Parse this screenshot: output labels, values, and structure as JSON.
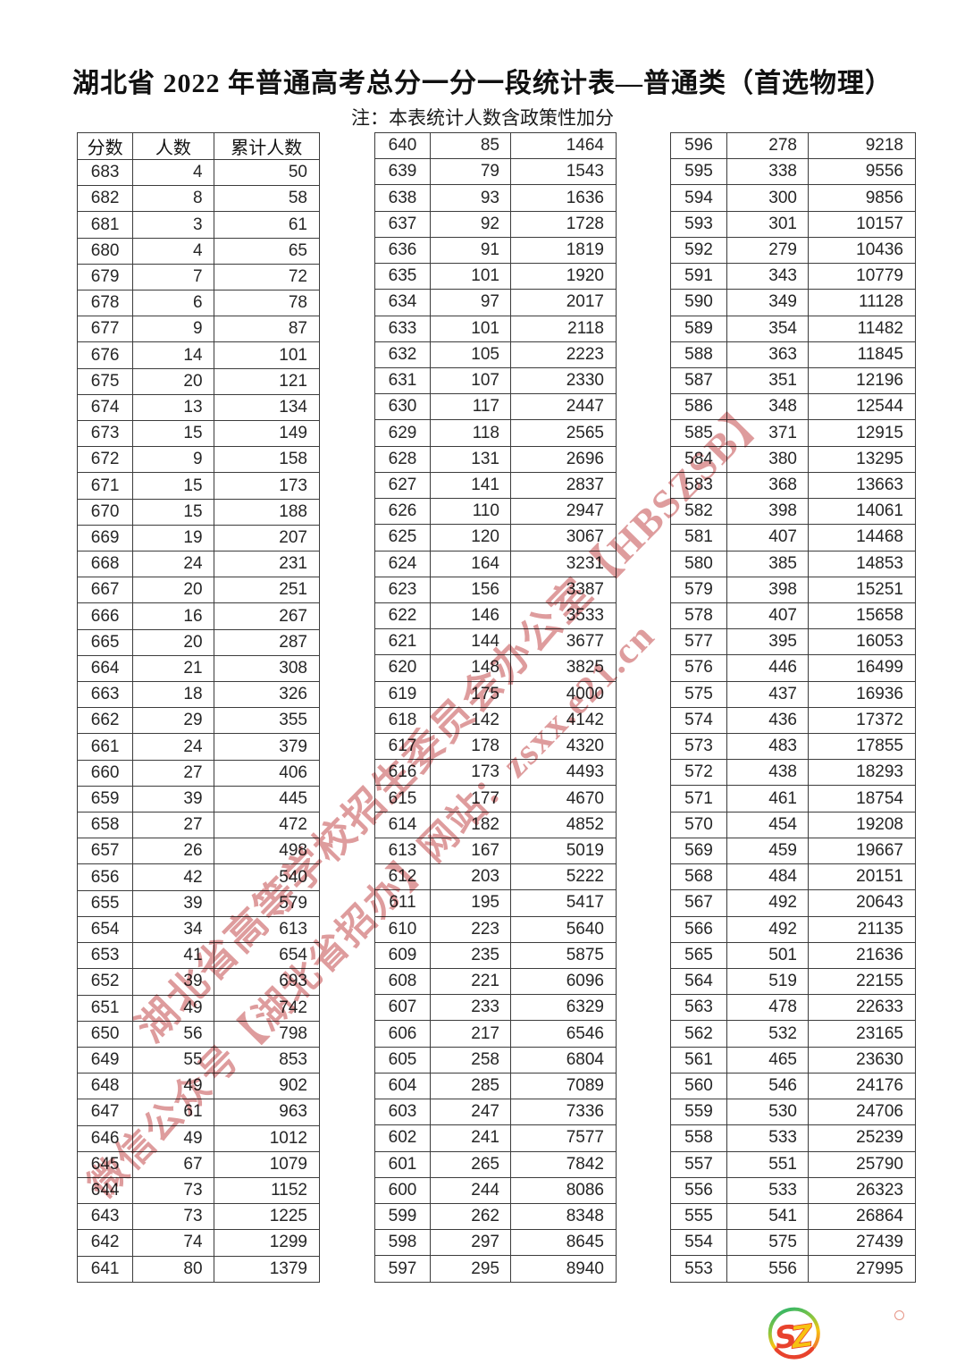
{
  "page": {
    "title": "湖北省 2022 年普通高考总分一分一段统计表—普通类（首选物理）",
    "note": "注：本表统计人数含政策性加分"
  },
  "table": {
    "headers": [
      "分数",
      "人数",
      "累计人数"
    ]
  },
  "tables": [
    {
      "rows": [
        [
          683,
          4,
          50
        ],
        [
          682,
          8,
          58
        ],
        [
          681,
          3,
          61
        ],
        [
          680,
          4,
          65
        ],
        [
          679,
          7,
          72
        ],
        [
          678,
          6,
          78
        ],
        [
          677,
          9,
          87
        ],
        [
          676,
          14,
          101
        ],
        [
          675,
          20,
          121
        ],
        [
          674,
          13,
          134
        ],
        [
          673,
          15,
          149
        ],
        [
          672,
          9,
          158
        ],
        [
          671,
          15,
          173
        ],
        [
          670,
          15,
          188
        ],
        [
          669,
          19,
          207
        ],
        [
          668,
          24,
          231
        ],
        [
          667,
          20,
          251
        ],
        [
          666,
          16,
          267
        ],
        [
          665,
          20,
          287
        ],
        [
          664,
          21,
          308
        ],
        [
          663,
          18,
          326
        ],
        [
          662,
          29,
          355
        ],
        [
          661,
          24,
          379
        ],
        [
          660,
          27,
          406
        ],
        [
          659,
          39,
          445
        ],
        [
          658,
          27,
          472
        ],
        [
          657,
          26,
          498
        ],
        [
          656,
          42,
          540
        ],
        [
          655,
          39,
          579
        ],
        [
          654,
          34,
          613
        ],
        [
          653,
          41,
          654
        ],
        [
          652,
          39,
          693
        ],
        [
          651,
          49,
          742
        ],
        [
          650,
          56,
          798
        ],
        [
          649,
          55,
          853
        ],
        [
          648,
          49,
          902
        ],
        [
          647,
          61,
          963
        ],
        [
          646,
          49,
          1012
        ],
        [
          645,
          67,
          1079
        ],
        [
          644,
          73,
          1152
        ],
        [
          643,
          73,
          1225
        ],
        [
          642,
          74,
          1299
        ],
        [
          641,
          80,
          1379
        ]
      ]
    },
    {
      "rows": [
        [
          640,
          85,
          1464
        ],
        [
          639,
          79,
          1543
        ],
        [
          638,
          93,
          1636
        ],
        [
          637,
          92,
          1728
        ],
        [
          636,
          91,
          1819
        ],
        [
          635,
          101,
          1920
        ],
        [
          634,
          97,
          2017
        ],
        [
          633,
          101,
          2118
        ],
        [
          632,
          105,
          2223
        ],
        [
          631,
          107,
          2330
        ],
        [
          630,
          117,
          2447
        ],
        [
          629,
          118,
          2565
        ],
        [
          628,
          131,
          2696
        ],
        [
          627,
          141,
          2837
        ],
        [
          626,
          110,
          2947
        ],
        [
          625,
          120,
          3067
        ],
        [
          624,
          164,
          3231
        ],
        [
          623,
          156,
          3387
        ],
        [
          622,
          146,
          3533
        ],
        [
          621,
          144,
          3677
        ],
        [
          620,
          148,
          3825
        ],
        [
          619,
          175,
          4000
        ],
        [
          618,
          142,
          4142
        ],
        [
          617,
          178,
          4320
        ],
        [
          616,
          173,
          4493
        ],
        [
          615,
          177,
          4670
        ],
        [
          614,
          182,
          4852
        ],
        [
          613,
          167,
          5019
        ],
        [
          612,
          203,
          5222
        ],
        [
          611,
          195,
          5417
        ],
        [
          610,
          223,
          5640
        ],
        [
          609,
          235,
          5875
        ],
        [
          608,
          221,
          6096
        ],
        [
          607,
          233,
          6329
        ],
        [
          606,
          217,
          6546
        ],
        [
          605,
          258,
          6804
        ],
        [
          604,
          285,
          7089
        ],
        [
          603,
          247,
          7336
        ],
        [
          602,
          241,
          7577
        ],
        [
          601,
          265,
          7842
        ],
        [
          600,
          244,
          8086
        ],
        [
          599,
          262,
          8348
        ],
        [
          598,
          297,
          8645
        ],
        [
          597,
          295,
          8940
        ]
      ]
    },
    {
      "rows": [
        [
          596,
          278,
          9218
        ],
        [
          595,
          338,
          9556
        ],
        [
          594,
          300,
          9856
        ],
        [
          593,
          301,
          10157
        ],
        [
          592,
          279,
          10436
        ],
        [
          591,
          343,
          10779
        ],
        [
          590,
          349,
          11128
        ],
        [
          589,
          354,
          11482
        ],
        [
          588,
          363,
          11845
        ],
        [
          587,
          351,
          12196
        ],
        [
          586,
          348,
          12544
        ],
        [
          585,
          371,
          12915
        ],
        [
          584,
          380,
          13295
        ],
        [
          583,
          368,
          13663
        ],
        [
          582,
          398,
          14061
        ],
        [
          581,
          407,
          14468
        ],
        [
          580,
          385,
          14853
        ],
        [
          579,
          398,
          15251
        ],
        [
          578,
          407,
          15658
        ],
        [
          577,
          395,
          16053
        ],
        [
          576,
          446,
          16499
        ],
        [
          575,
          437,
          16936
        ],
        [
          574,
          436,
          17372
        ],
        [
          573,
          483,
          17855
        ],
        [
          572,
          438,
          18293
        ],
        [
          571,
          461,
          18754
        ],
        [
          570,
          454,
          19208
        ],
        [
          569,
          459,
          19667
        ],
        [
          568,
          484,
          20151
        ],
        [
          567,
          492,
          20643
        ],
        [
          566,
          492,
          21135
        ],
        [
          565,
          501,
          21636
        ],
        [
          564,
          519,
          22155
        ],
        [
          563,
          478,
          22633
        ],
        [
          562,
          532,
          23165
        ],
        [
          561,
          465,
          23630
        ],
        [
          560,
          546,
          24176
        ],
        [
          559,
          530,
          24706
        ],
        [
          558,
          533,
          25239
        ],
        [
          557,
          551,
          25790
        ],
        [
          556,
          533,
          26323
        ],
        [
          555,
          541,
          26864
        ],
        [
          554,
          575,
          27439
        ],
        [
          553,
          556,
          27995
        ]
      ]
    }
  ],
  "watermark": {
    "line1": "湖北省高等学校招生委员会办公室【HBSZSB】",
    "line2": "微信公众号【湖北省招办】网站：zsxx.e21.cn"
  },
  "logo": {
    "letter_s": "S",
    "letter_z": "Z"
  },
  "colors": {
    "border": "#3c3c3c",
    "watermark_red": "#c65456",
    "logo_red": "#e8432d",
    "logo_yellow": "#f7c211",
    "logo_green": "#2fb56a"
  }
}
